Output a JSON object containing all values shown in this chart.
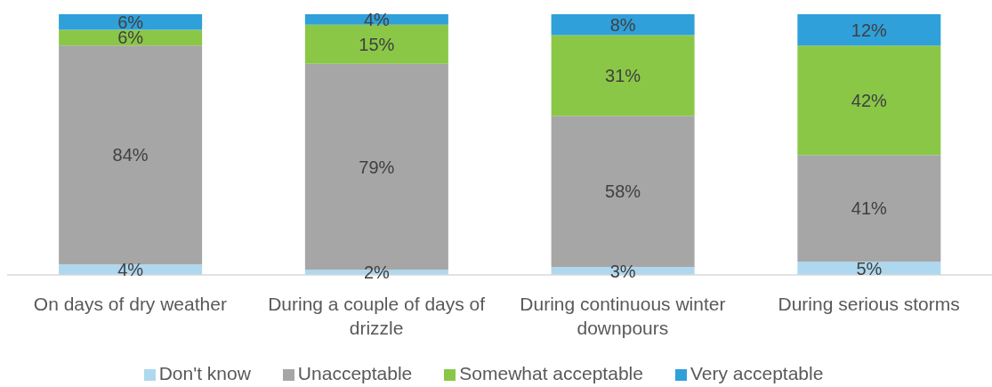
{
  "chart_data": {
    "type": "bar",
    "stacked": true,
    "legend": "bottom",
    "categories": [
      "On days of dry weather",
      "During a couple of days of drizzle",
      "During continuous winter downpours",
      "During serious storms"
    ],
    "series": [
      {
        "name": "Don't know",
        "color": "#add8ef",
        "values": [
          4,
          2,
          3,
          5
        ],
        "value_labels": [
          "4%",
          "2%",
          "3%",
          "5%"
        ]
      },
      {
        "name": "Unacceptable",
        "color": "#a6a6a6",
        "values": [
          84,
          79,
          58,
          41
        ],
        "value_labels": [
          "84%",
          "79%",
          "58%",
          "41%"
        ]
      },
      {
        "name": "Somewhat acceptable",
        "color": "#8ac747",
        "values": [
          6,
          15,
          31,
          42
        ],
        "value_labels": [
          "6%",
          "15%",
          "31%",
          "42%"
        ]
      },
      {
        "name": "Very acceptable",
        "color": "#2fa0da",
        "values": [
          6,
          4,
          8,
          12
        ],
        "value_labels": [
          "6%",
          "4%",
          "8%",
          "12%"
        ]
      }
    ]
  }
}
